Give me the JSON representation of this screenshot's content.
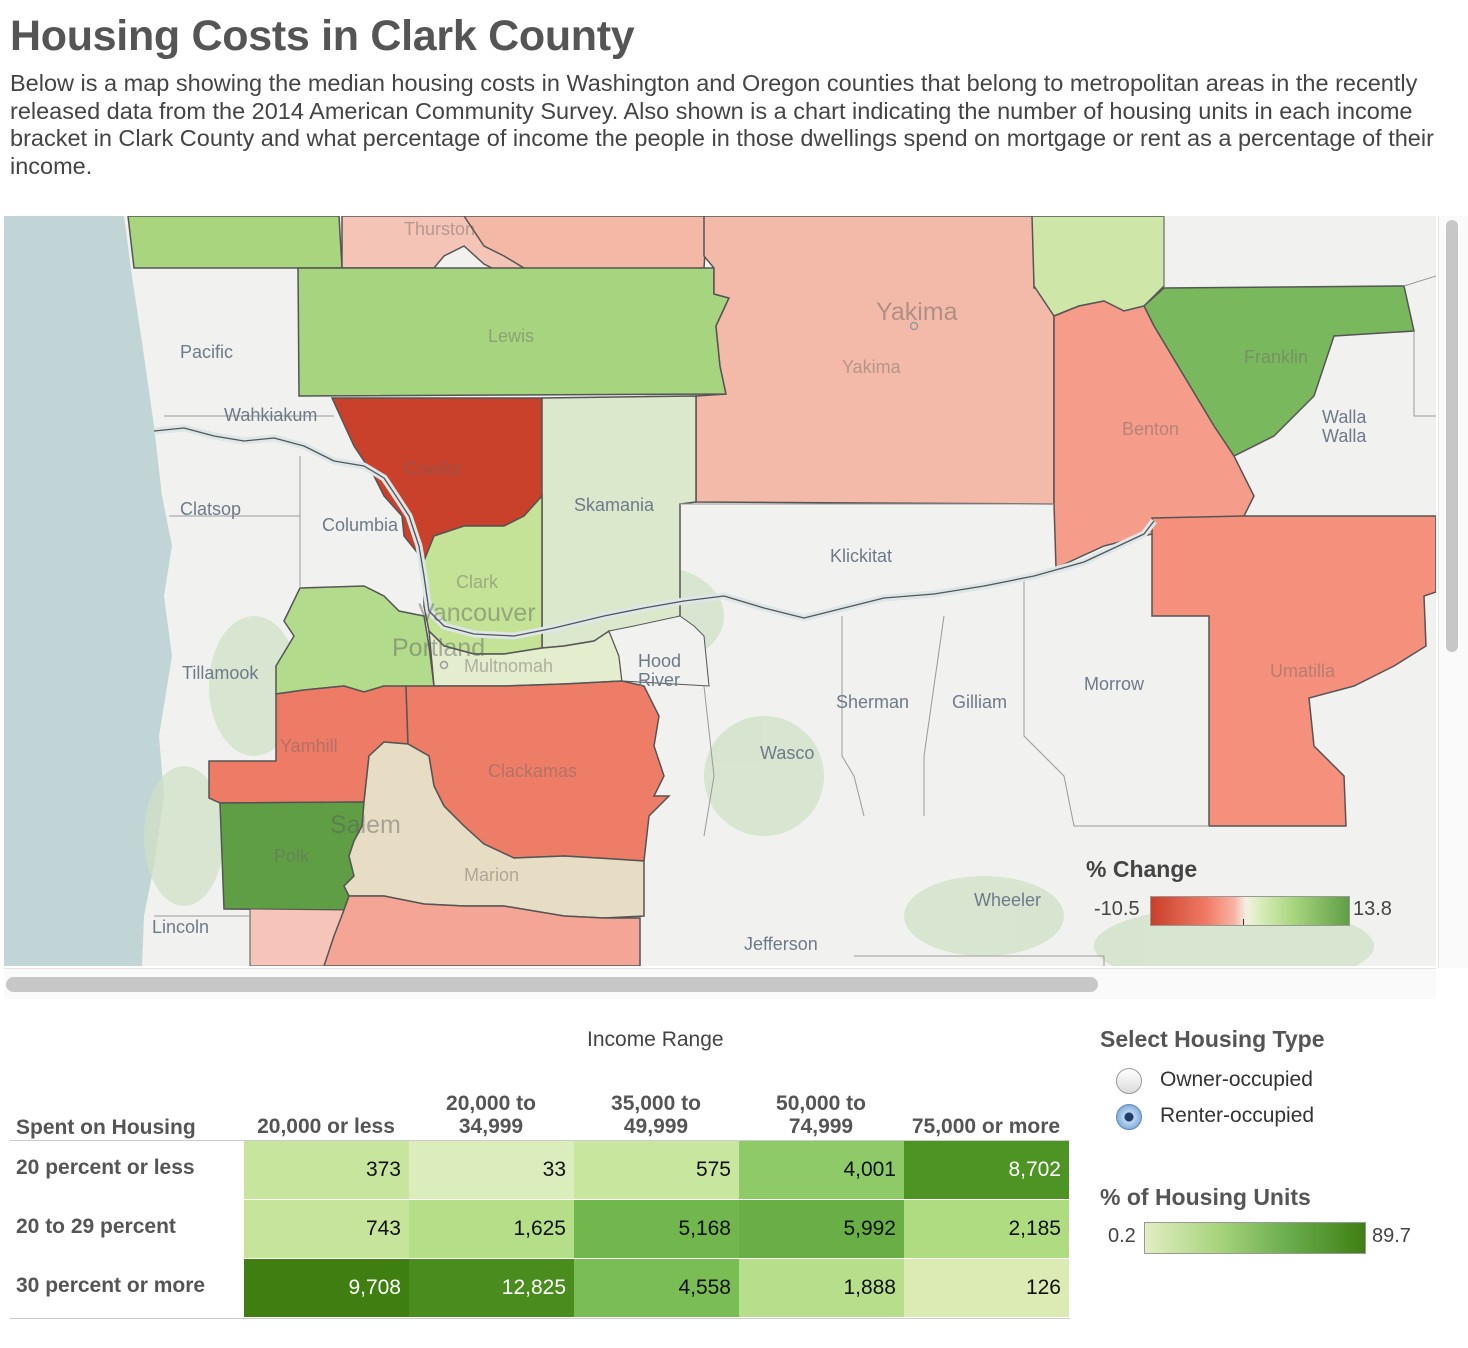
{
  "header": {
    "title": "Housing Costs in Clark County",
    "description": "Below is a map showing the median housing costs in Washington and Oregon counties that belong to metropolitan areas in the recently released data from the 2014 American Community Survey. Also shown is a chart indicating the number of housing units in each income bracket in Clark County and what percentage of income the people in those dwellings spend on mortgage or rent as a percentage of their income."
  },
  "map": {
    "county_labels": {
      "thurston": "Thurston",
      "pacific": "Pacific",
      "lewis": "Lewis",
      "yakima": "Yakima",
      "franklin": "Franklin",
      "benton": "Benton",
      "walla_walla_1": "Walla",
      "walla_walla_2": "Walla",
      "wahkiakum": "Wahkiakum",
      "cowlitz": "Cowlitz",
      "skamania": "Skamania",
      "clatsop": "Clatsop",
      "columbia": "Columbia",
      "clark": "Clark",
      "klickitat": "Klickitat",
      "multnomah": "Multnomah",
      "hood_river_1": "Hood",
      "hood_river_2": "River",
      "tillamook": "Tillamook",
      "morrow": "Morrow",
      "umatilla": "Umatilla",
      "sherman": "Sherman",
      "gilliam": "Gilliam",
      "wasco": "Wasco",
      "yamhill": "Yamhill",
      "clackamas": "Clackamas",
      "polk": "Polk",
      "marion": "Marion",
      "wheeler": "Wheeler",
      "lincoln": "Lincoln",
      "jefferson": "Jefferson"
    },
    "city_labels": {
      "yakima": "Yakima",
      "vancouver": "Vancouver",
      "portland": "Portland",
      "salem": "Salem"
    },
    "colors": {
      "strong_red": "#c9402b",
      "red": "#ed7b66",
      "salmon": "#f59483",
      "light_salmon": "#f4b2a3",
      "pale_salmon": "#f4c0b2",
      "tan": "#e7dcc4",
      "pale_green": "#dbe8cb",
      "light_green": "#cfe6a9",
      "green": "#a6d57f",
      "mid_green": "#8dc46c",
      "dark_green": "#5f9e45"
    },
    "legend": {
      "title": "% Change",
      "min": "-10.5",
      "max": "13.8"
    }
  },
  "table": {
    "column_title": "Income Range",
    "row_title": "Spent on Housing",
    "columns": [
      {
        "line1": "20,000 or less",
        "line2": ""
      },
      {
        "line1": "20,000 to",
        "line2": "34,999"
      },
      {
        "line1": "35,000 to",
        "line2": "49,999"
      },
      {
        "line1": "50,000 to",
        "line2": "74,999"
      },
      {
        "line1": "75,000 or more",
        "line2": ""
      }
    ],
    "rows": [
      {
        "label": "20 percent or less",
        "values": [
          "373",
          "33",
          "575",
          "4,001",
          "8,702"
        ]
      },
      {
        "label": "20 to 29 percent",
        "values": [
          "743",
          "1,625",
          "5,168",
          "5,992",
          "2,185"
        ]
      },
      {
        "label": "30 percent or more",
        "values": [
          "9,708",
          "12,825",
          "4,558",
          "1,888",
          "126"
        ]
      }
    ]
  },
  "filter": {
    "title": "Select Housing Type",
    "options": [
      {
        "label": "Owner-occupied",
        "selected": false
      },
      {
        "label": "Renter-occupied",
        "selected": true
      }
    ]
  },
  "units_legend": {
    "title": "% of Housing Units",
    "min": "0.2",
    "max": "89.7"
  }
}
